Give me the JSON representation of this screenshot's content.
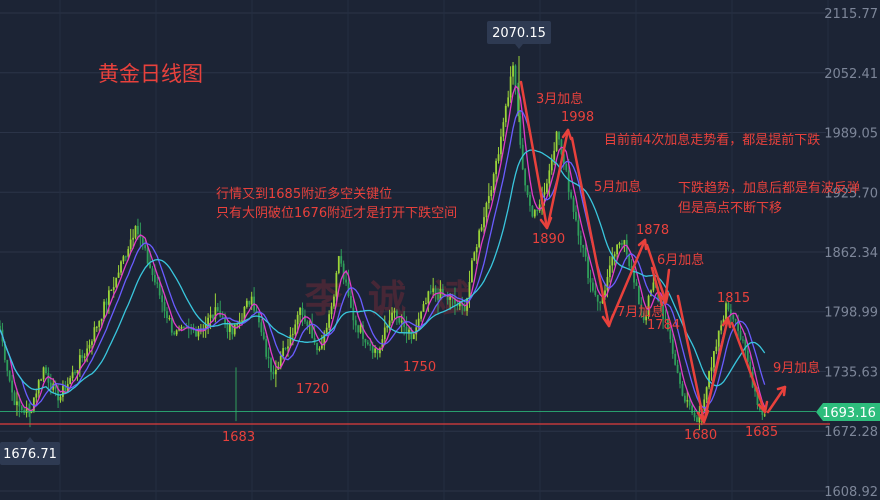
{
  "chart_data": {
    "type": "candlestick",
    "title": "黄金日线图",
    "watermark": "李 诚 斌",
    "y_axis": {
      "ticks": [
        "2115.77",
        "2052.41",
        "1989.05",
        "1925.70",
        "1862.34",
        "1798.99",
        "1735.63",
        "1672.28",
        "1608.92"
      ],
      "ylim": [
        1608.92,
        2115.77
      ],
      "position": "right"
    },
    "current_price": {
      "label": "1693.16",
      "value": 1693.16,
      "color": "#2dbd7c"
    },
    "support_line": {
      "value": 1680
    },
    "price_tags": [
      {
        "label": "2070.15",
        "value": 2070.15
      },
      {
        "label": "1676.71",
        "value": 1676.71
      }
    ],
    "annotations": {
      "p1683": "1683",
      "p1720": "1720",
      "p1750": "1750",
      "p1890": "1890",
      "p1998": "1998",
      "p1878": "1878",
      "p1784": "1784",
      "p1815": "1815",
      "p1680": "1680",
      "p1685": "1685",
      "hike_mar": "3月加息",
      "hike_may": "5月加息",
      "hike_jun": "6月加息",
      "hike_jul": "7月加息",
      "hike_sep": "9月加息",
      "note_1": "目前前4次加息走势看，都是提前下跌",
      "note_2a": "下跌趋势，加息后都是有波反弹",
      "note_2b": "但是高点不断下移",
      "note_3a": "行情又到1685附近多空关键位",
      "note_3b": "只有大阴破位1676附近才是打开下跌空间"
    },
    "key_points": [
      {
        "i": 0,
        "p": 1780
      },
      {
        "i": 6,
        "p": 1700
      },
      {
        "i": 12,
        "p": 1692
      },
      {
        "i": 18,
        "p": 1740
      },
      {
        "i": 24,
        "p": 1705
      },
      {
        "i": 36,
        "p": 1760
      },
      {
        "i": 48,
        "p": 1835
      },
      {
        "i": 56,
        "p": 1890
      },
      {
        "i": 62,
        "p": 1845
      },
      {
        "i": 72,
        "p": 1775
      },
      {
        "i": 82,
        "p": 1780
      },
      {
        "i": 90,
        "p": 1800
      },
      {
        "i": 96,
        "p": 1775
      },
      {
        "i": 104,
        "p": 1815
      },
      {
        "i": 112,
        "p": 1735
      },
      {
        "i": 118,
        "p": 1760
      },
      {
        "i": 124,
        "p": 1803
      },
      {
        "i": 132,
        "p": 1760
      },
      {
        "i": 138,
        "p": 1815
      },
      {
        "i": 140,
        "p": 1858
      },
      {
        "i": 146,
        "p": 1790
      },
      {
        "i": 156,
        "p": 1755
      },
      {
        "i": 162,
        "p": 1798
      },
      {
        "i": 170,
        "p": 1770
      },
      {
        "i": 178,
        "p": 1820
      },
      {
        "i": 184,
        "p": 1815
      },
      {
        "i": 192,
        "p": 1800
      },
      {
        "i": 196,
        "p": 1862
      },
      {
        "i": 204,
        "p": 1945
      },
      {
        "i": 208,
        "p": 2000
      },
      {
        "i": 212,
        "p": 2060
      },
      {
        "i": 216,
        "p": 1950
      },
      {
        "i": 220,
        "p": 1900
      },
      {
        "i": 226,
        "p": 1935
      },
      {
        "i": 230,
        "p": 1990
      },
      {
        "i": 236,
        "p": 1920
      },
      {
        "i": 244,
        "p": 1830
      },
      {
        "i": 248,
        "p": 1808
      },
      {
        "i": 254,
        "p": 1860
      },
      {
        "i": 258,
        "p": 1875
      },
      {
        "i": 262,
        "p": 1830
      },
      {
        "i": 266,
        "p": 1790
      },
      {
        "i": 270,
        "p": 1830
      },
      {
        "i": 276,
        "p": 1780
      },
      {
        "i": 282,
        "p": 1710
      },
      {
        "i": 288,
        "p": 1682
      },
      {
        "i": 294,
        "p": 1740
      },
      {
        "i": 300,
        "p": 1808
      },
      {
        "i": 304,
        "p": 1790
      },
      {
        "i": 310,
        "p": 1735
      },
      {
        "i": 314,
        "p": 1695
      },
      {
        "i": 316,
        "p": 1690
      }
    ]
  }
}
